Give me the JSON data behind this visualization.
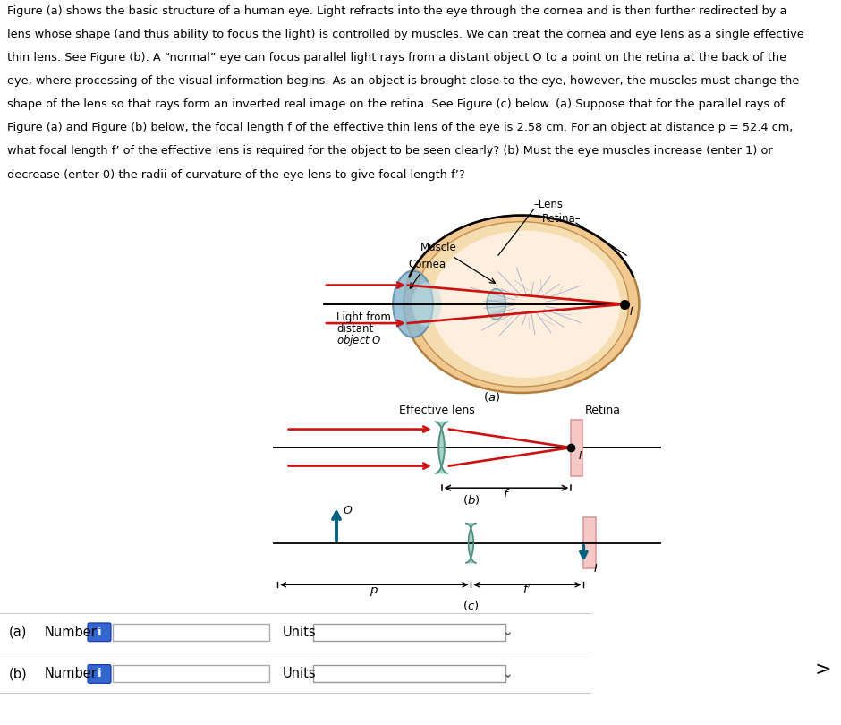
{
  "bg_color": "#ffffff",
  "text_color": "#000000",
  "red_color": "#cc1111",
  "teal_color": "#006080",
  "pink_face": "#f5c8c8",
  "pink_edge": "#e09898",
  "eye_outer": "#f0c890",
  "eye_border": "#c09050",
  "cornea_face": "#7aaabb",
  "cornea_edge": "#4a7a9a",
  "lens_face": "#90c8b8",
  "lens_edge": "#509080",
  "blue_btn": "#3366cc",
  "field_edge": "#aaaaaa",
  "text_lines": [
    "Figure (a) shows the basic structure of a human eye. Light refracts into the eye through the cornea and is then further redirected by a",
    "lens whose shape (and thus ability to focus the light) is controlled by muscles. We can treat the cornea and eye lens as a single effective",
    "thin lens. See Figure (b). A “normal” eye can focus parallel light rays from a distant object O to a point on the retina at the back of the",
    "eye, where processing of the visual information begins. As an object is brought close to the eye, however, the muscles must change the",
    "shape of the lens so that rays form an inverted real image on the retina. See Figure (c) below. (a) Suppose that for the parallel rays of",
    "Figure (a) and Figure (b) below, the focal length f of the effective thin lens of the eye is 2.58 cm. For an object at distance p = 52.4 cm,",
    "what focal length f’ of the effective lens is required for the object to be seen clearly? (b) Must the eye muscles increase (enter 1) or",
    "decrease (enter 0) the radii of curvature of the eye lens to give focal length f’?"
  ]
}
